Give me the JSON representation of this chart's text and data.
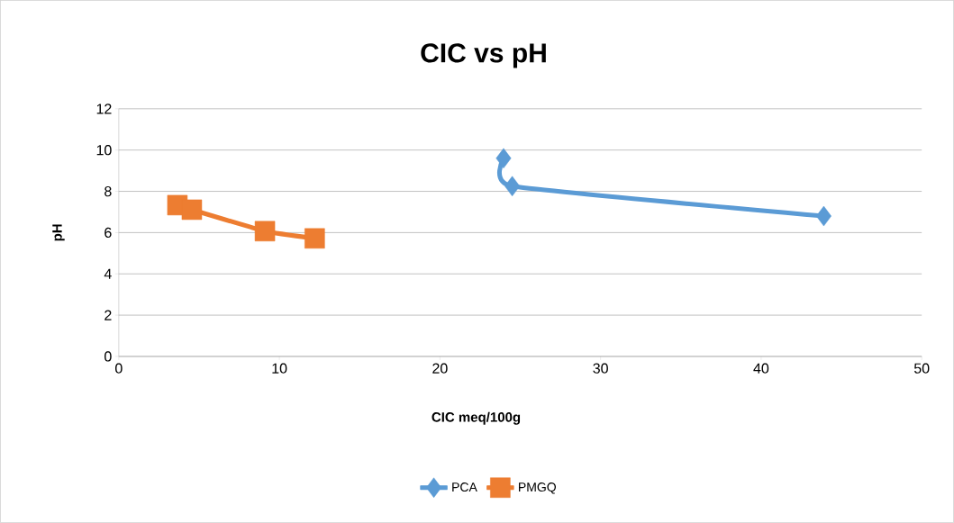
{
  "chart_data": {
    "type": "line",
    "title": "CIC vs pH",
    "xlabel": "CIC meq/100g",
    "ylabel": "pH",
    "xlim": [
      0,
      50
    ],
    "xticks": [
      0,
      10,
      20,
      30,
      40,
      50
    ],
    "ylim": [
      0,
      12
    ],
    "yticks": [
      0,
      2,
      4,
      6,
      8,
      10,
      12
    ],
    "grid": "y",
    "legend": "bottom",
    "series": [
      {
        "name": "PCA",
        "color": "#5b9bd5",
        "marker": "diamond",
        "x": [
          23.96,
          24.5,
          43.9
        ],
        "values": [
          9.6,
          8.25,
          6.8
        ]
      },
      {
        "name": "PMGQ",
        "color": "#ed7d31",
        "marker": "square",
        "x": [
          3.65,
          4.55,
          9.1,
          12.2
        ],
        "values": [
          7.33,
          7.11,
          6.07,
          5.72
        ]
      }
    ]
  }
}
